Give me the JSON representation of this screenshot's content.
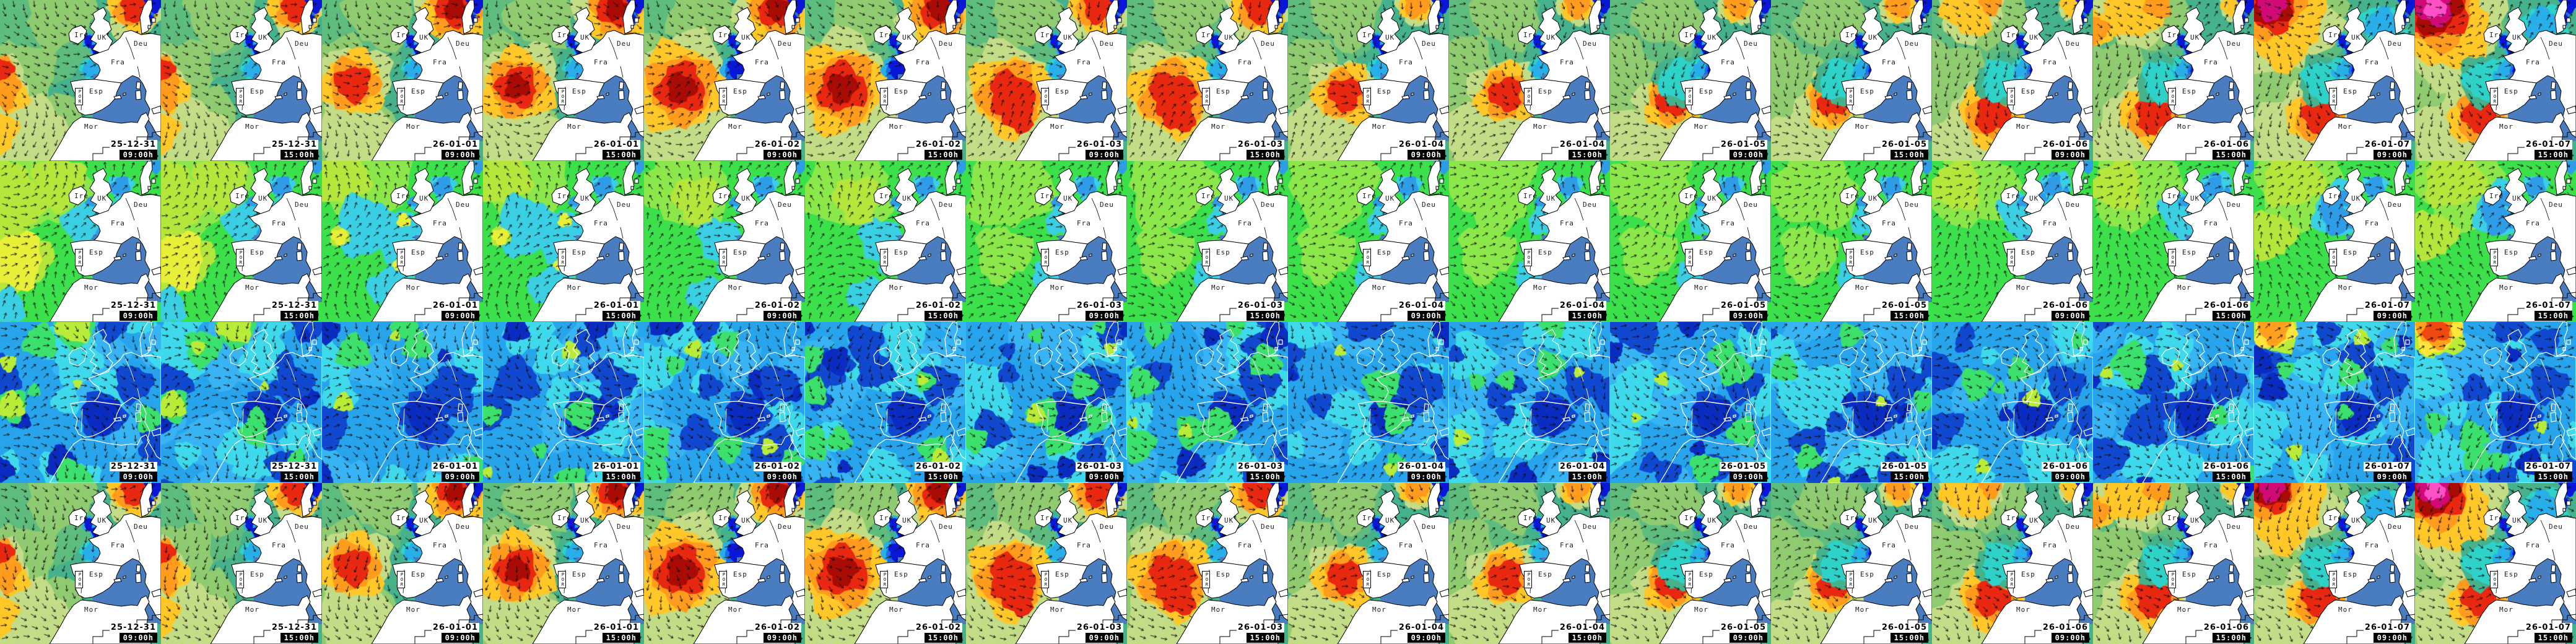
{
  "columns": [
    {
      "date": "25-12-31",
      "time": "09:00h"
    },
    {
      "date": "25-12-31",
      "time": "15:00h"
    },
    {
      "date": "26-01-01",
      "time": "09:00h"
    },
    {
      "date": "26-01-01",
      "time": "15:00h"
    },
    {
      "date": "26-01-02",
      "time": "09:00h"
    },
    {
      "date": "26-01-02",
      "time": "15:00h"
    },
    {
      "date": "26-01-03",
      "time": "09:00h"
    },
    {
      "date": "26-01-03",
      "time": "15:00h"
    },
    {
      "date": "26-01-04",
      "time": "09:00h"
    },
    {
      "date": "26-01-04",
      "time": "15:00h"
    },
    {
      "date": "26-01-05",
      "time": "09:00h"
    },
    {
      "date": "26-01-05",
      "time": "15:00h"
    },
    {
      "date": "26-01-06",
      "time": "09:00h"
    },
    {
      "date": "26-01-06",
      "time": "15:00h"
    },
    {
      "date": "26-01-07",
      "time": "09:00h"
    },
    {
      "date": "26-01-07",
      "time": "15:00h"
    }
  ],
  "rows": [
    {
      "id": "row-1",
      "field": "wave"
    },
    {
      "id": "row-2",
      "field": "period"
    },
    {
      "id": "row-3",
      "field": "wind"
    },
    {
      "id": "row-4",
      "field": "swell"
    }
  ],
  "map_labels": {
    "ire": "Ire",
    "uk": "UK",
    "deu": "Deu",
    "fra": "Fra",
    "esp": "Esp",
    "por": "POR",
    "mor": "Mor"
  },
  "colors": {
    "land": "#ffffff",
    "mediterranean": "#4a7cc0",
    "coast": "#000000",
    "wind_coast": "#ffffff",
    "arrow": "#0d0d0d",
    "label_text": "#1c1c1c",
    "date_bg": "#ffffff",
    "date_text": "#000000",
    "time_box_bg": "#000000",
    "time_box_text": "#ffffff"
  },
  "palettes": {
    "wave": [
      "#0a16d8",
      "#1e6ee8",
      "#28aee8",
      "#2ed2c8",
      "#46b28c",
      "#5fbc7f",
      "#8fcb70",
      "#c3dc86",
      "#ffc828",
      "#ff9c1e",
      "#e82810",
      "#a80c04",
      "#d20a78",
      "#ff50c8"
    ],
    "period": [
      "#2f9ce8",
      "#3bcfe4",
      "#3ce04b",
      "#8ce84a",
      "#b4e63c",
      "#e8ef38"
    ],
    "wind": [
      "#0a2cc0",
      "#1048d0",
      "#1560e0",
      "#27a4ec",
      "#38b4f4",
      "#3fd9ec",
      "#3ce06c",
      "#b8ec38",
      "#ffe53c",
      "#ffa01e",
      "#f04810"
    ]
  }
}
